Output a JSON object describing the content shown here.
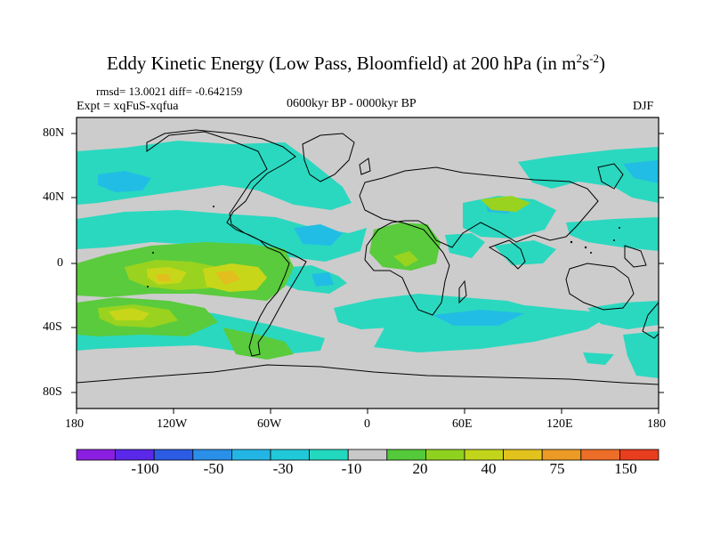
{
  "title": {
    "main": "Eddy Kinetic Energy (Low Pass, Bloomfield) at 200 hPa (in m",
    "sup1": "2",
    "mid": "s",
    "sup2": "-2",
    "end": ")"
  },
  "stats": "rmsd= 13.0021 diff= -0.642159",
  "experiment": "Expt = xqFuS-xqfua",
  "period": "0600kyr BP - 0000kyr BP",
  "season": "DJF",
  "axes": {
    "lat_ticks": [
      "80N",
      "40N",
      "0",
      "40S",
      "80S"
    ],
    "lon_ticks": [
      "180",
      "120W",
      "60W",
      "0",
      "60E",
      "120E",
      "180"
    ]
  },
  "colorbar": {
    "colors": [
      "#8b1ee0",
      "#5a28e8",
      "#2b5ce3",
      "#2a8fe6",
      "#23b6e4",
      "#21c8d8",
      "#22d8bf",
      "#c8c8c8",
      "#54c93a",
      "#8fd11f",
      "#c2d51a",
      "#e2c21c",
      "#eb9a24",
      "#ec6e28",
      "#e83d1f"
    ],
    "labels": [
      "-100",
      "-50",
      "-30",
      "-10",
      "20",
      "40",
      "75",
      "150"
    ]
  }
}
